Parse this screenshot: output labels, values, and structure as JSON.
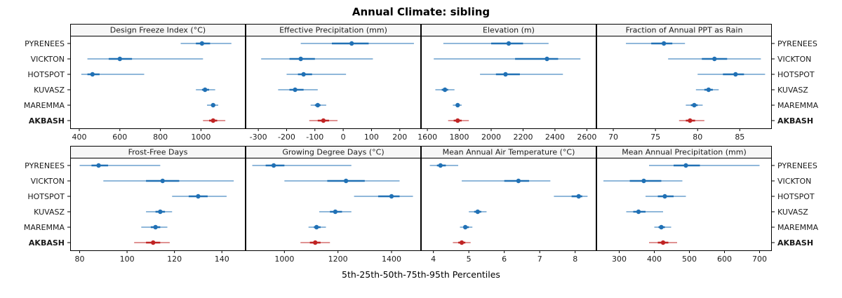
{
  "chart_data": {
    "type": "dot-interval",
    "title": "Annual Climate: sibling",
    "footer_label": "5th-25th-50th-75th-95th Percentiles",
    "percentiles": [
      5,
      25,
      50,
      75,
      95
    ],
    "sites": [
      "PYRENEES",
      "VICKTON",
      "HOTSPOT",
      "KUVASZ",
      "MAREMMA",
      "AKBASH"
    ],
    "highlight_site": "AKBASH",
    "colors": {
      "series_normal": "#2171B5",
      "series_highlight": "#C02424",
      "panel_border": "#000000",
      "strip_fill": "#F7F7F7",
      "text": "#1a1a1a"
    },
    "legend_position": "none",
    "grid": "off",
    "panels": [
      {
        "title": "Design Freeze Index (°C)",
        "ticks": [
          400,
          600,
          800,
          1000
        ],
        "xlim": [
          355,
          1220
        ],
        "values": {
          "PYRENEES": [
            900,
            975,
            1005,
            1045,
            1150
          ],
          "VICKTON": [
            440,
            545,
            600,
            660,
            1010
          ],
          "HOTSPOT": [
            410,
            440,
            465,
            500,
            720
          ],
          "KUVASZ": [
            975,
            1005,
            1020,
            1040,
            1070
          ],
          "MAREMMA": [
            1030,
            1050,
            1060,
            1070,
            1085
          ],
          "AKBASH": [
            1010,
            1040,
            1060,
            1080,
            1120
          ]
        }
      },
      {
        "title": "Effective Precipitation (mm)",
        "ticks": [
          -300,
          -200,
          -100,
          0,
          100,
          200
        ],
        "xlim": [
          -345,
          275
        ],
        "values": {
          "PYRENEES": [
            -150,
            -40,
            30,
            90,
            250
          ],
          "VICKTON": [
            -290,
            -190,
            -150,
            -100,
            105
          ],
          "HOTSPOT": [
            -200,
            -160,
            -140,
            -110,
            10
          ],
          "KUVASZ": [
            -230,
            -190,
            -170,
            -140,
            -90
          ],
          "MAREMMA": [
            -115,
            -100,
            -90,
            -80,
            -60
          ],
          "AKBASH": [
            -120,
            -90,
            -70,
            -50,
            -20
          ]
        }
      },
      {
        "title": "Elevation (m)",
        "ticks": [
          1600,
          1800,
          2000,
          2200,
          2400,
          2600
        ],
        "xlim": [
          1560,
          2660
        ],
        "values": {
          "PYRENEES": [
            1700,
            2000,
            2110,
            2200,
            2360
          ],
          "VICKTON": [
            1640,
            2150,
            2350,
            2420,
            2560
          ],
          "HOTSPOT": [
            1930,
            2030,
            2090,
            2180,
            2450
          ],
          "KUVASZ": [
            1650,
            1690,
            1710,
            1730,
            1770
          ],
          "MAREMMA": [
            1760,
            1780,
            1790,
            1800,
            1815
          ],
          "AKBASH": [
            1730,
            1765,
            1790,
            1815,
            1860
          ]
        }
      },
      {
        "title": "Fraction of Annual PPT as Rain",
        "ticks": [
          70,
          75,
          80,
          85
        ],
        "xlim": [
          68,
          88.8
        ],
        "values": {
          "PYRENEES": [
            71.5,
            74.5,
            76.0,
            77.0,
            78.5
          ],
          "VICKTON": [
            76.5,
            80.5,
            82.0,
            83.5,
            87.5
          ],
          "HOTSPOT": [
            80.0,
            83.0,
            84.5,
            85.5,
            88.0
          ],
          "KUVASZ": [
            79.8,
            80.8,
            81.3,
            81.8,
            82.5
          ],
          "MAREMMA": [
            78.6,
            79.2,
            79.6,
            80.0,
            80.6
          ],
          "AKBASH": [
            77.8,
            78.6,
            79.1,
            79.7,
            80.8
          ]
        }
      },
      {
        "title": "Frost-Free Days",
        "ticks": [
          80,
          100,
          120,
          140
        ],
        "xlim": [
          76,
          150
        ],
        "values": {
          "PYRENEES": [
            80,
            85,
            88,
            92,
            114
          ],
          "VICKTON": [
            90,
            108,
            115,
            122,
            145
          ],
          "HOTSPOT": [
            119,
            126,
            130,
            134,
            142
          ],
          "KUVASZ": [
            108,
            112,
            114,
            116,
            119
          ],
          "MAREMMA": [
            106,
            110,
            112,
            114,
            117
          ],
          "AKBASH": [
            103,
            108,
            111,
            114,
            118
          ]
        }
      },
      {
        "title": "Growing Degree Days (°C)",
        "ticks": [
          1000,
          1200,
          1400
        ],
        "xlim": [
          855,
          1510
        ],
        "values": {
          "PYRENEES": [
            880,
            930,
            960,
            1000,
            1250
          ],
          "VICKTON": [
            1000,
            1160,
            1230,
            1300,
            1430
          ],
          "HOTSPOT": [
            1260,
            1350,
            1400,
            1430,
            1480
          ],
          "KUVASZ": [
            1130,
            1170,
            1190,
            1215,
            1250
          ],
          "MAREMMA": [
            1090,
            1110,
            1120,
            1135,
            1155
          ],
          "AKBASH": [
            1060,
            1095,
            1115,
            1135,
            1170
          ]
        }
      },
      {
        "title": "Mean Annual Air Temperature (°C)",
        "ticks": [
          4,
          5,
          6,
          7,
          8
        ],
        "xlim": [
          3.65,
          8.6
        ],
        "values": {
          "PYRENEES": [
            3.9,
            4.1,
            4.2,
            4.35,
            4.7
          ],
          "VICKTON": [
            4.8,
            6.0,
            6.4,
            6.7,
            7.3
          ],
          "HOTSPOT": [
            7.4,
            7.9,
            8.1,
            8.2,
            8.35
          ],
          "KUVASZ": [
            5.0,
            5.15,
            5.25,
            5.35,
            5.5
          ],
          "MAREMMA": [
            4.75,
            4.85,
            4.9,
            5.0,
            5.1
          ],
          "AKBASH": [
            4.55,
            4.7,
            4.8,
            4.9,
            5.05
          ]
        }
      },
      {
        "title": "Mean Annual Precipitation (mm)",
        "ticks": [
          300,
          400,
          500,
          600,
          700
        ],
        "xlim": [
          235,
          735
        ],
        "values": {
          "PYRENEES": [
            385,
            455,
            490,
            530,
            700
          ],
          "VICKTON": [
            255,
            330,
            370,
            420,
            480
          ],
          "HOTSPOT": [
            375,
            410,
            430,
            455,
            490
          ],
          "KUVASZ": [
            320,
            340,
            355,
            375,
            425
          ],
          "MAREMMA": [
            400,
            412,
            420,
            430,
            448
          ],
          "AKBASH": [
            385,
            410,
            425,
            440,
            465
          ]
        }
      }
    ]
  }
}
